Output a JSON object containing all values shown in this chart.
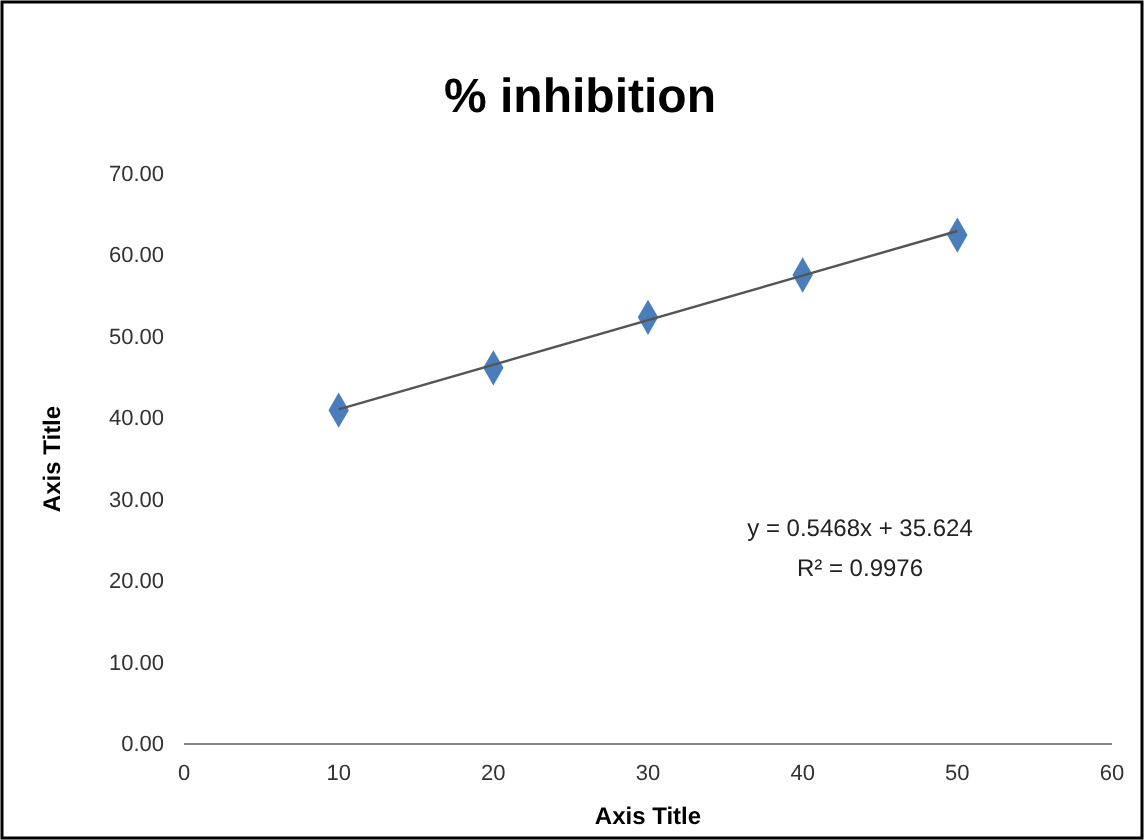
{
  "chart_data": {
    "type": "scatter",
    "title": "% inhibition",
    "xlabel": "Axis Title",
    "ylabel": "Axis Title",
    "xlim": [
      0,
      60
    ],
    "xticks": [
      0,
      10,
      20,
      30,
      40,
      50,
      60
    ],
    "ylim": [
      0,
      70
    ],
    "yticks": [
      {
        "value": 0,
        "label": "0.00"
      },
      {
        "value": 10,
        "label": "10.00"
      },
      {
        "value": 20,
        "label": "20.00"
      },
      {
        "value": 30,
        "label": "30.00"
      },
      {
        "value": 40,
        "label": "40.00"
      },
      {
        "value": 50,
        "label": "50.00"
      },
      {
        "value": 60,
        "label": "60.00"
      },
      {
        "value": 70,
        "label": "70.00"
      }
    ],
    "x": [
      10,
      20,
      30,
      40,
      50
    ],
    "series": [
      {
        "color": "#4a7ebb",
        "marker": "diamond",
        "values": [
          41.0,
          46.2,
          52.4,
          57.6,
          62.5
        ]
      },
      {
        "type": "line",
        "color": "#555555",
        "marker": "none",
        "x": [
          10,
          50
        ],
        "values": [
          41.1,
          63.0
        ]
      }
    ],
    "annotations": [
      "y = 0.5468x + 35.624",
      "R² = 0.9976"
    ],
    "grid": false
  }
}
